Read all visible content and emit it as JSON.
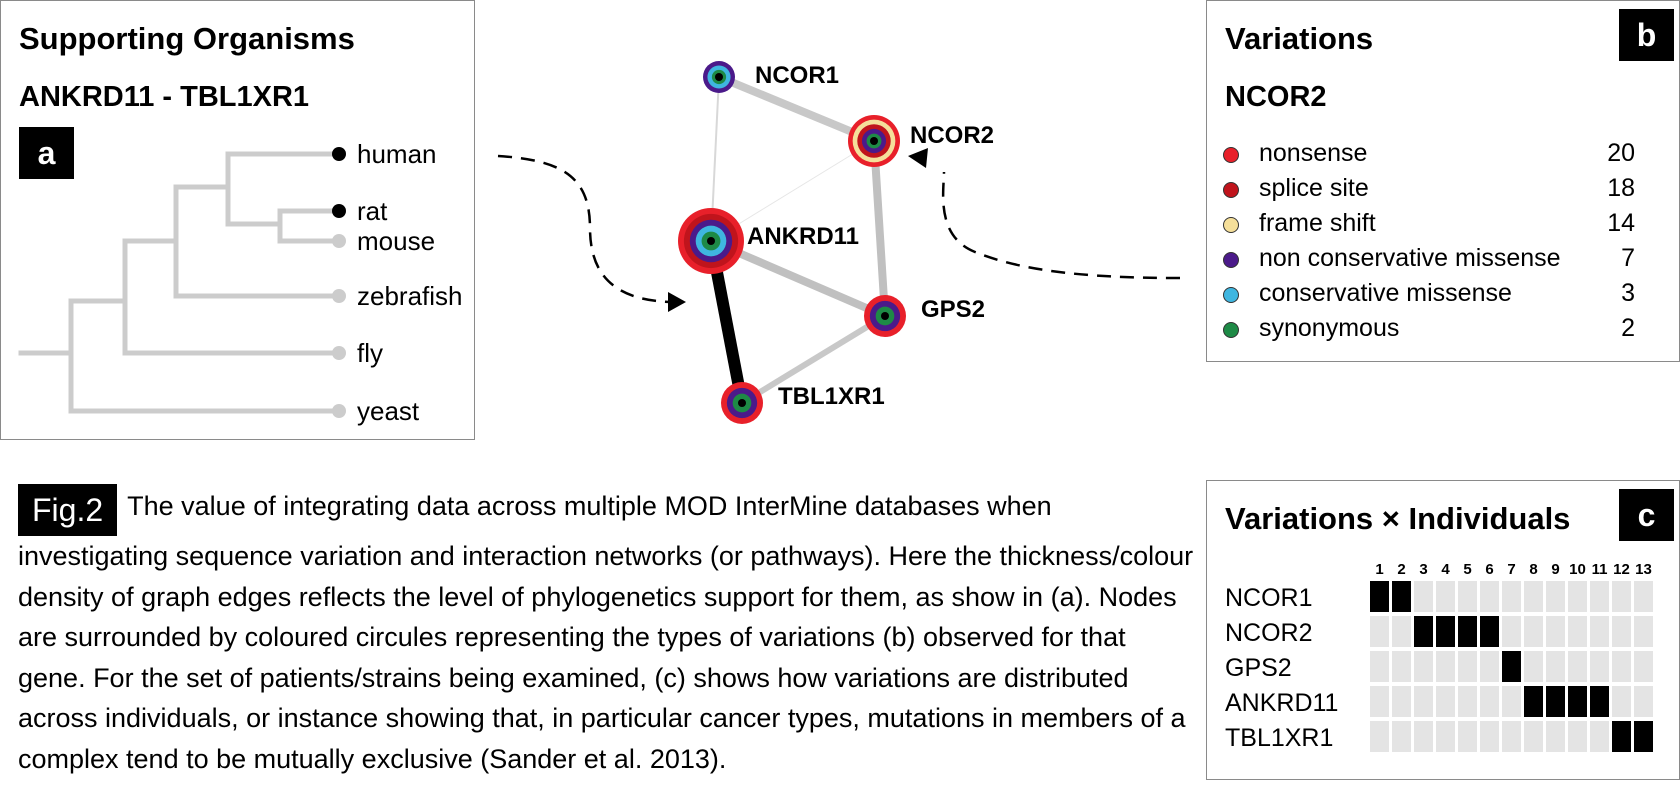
{
  "panel_a": {
    "title": "Supporting Organisms",
    "subtitle": "ANKRD11 - TBL1XR1",
    "badge": "a",
    "organisms": [
      {
        "name": "human",
        "supported": true
      },
      {
        "name": "rat",
        "supported": true
      },
      {
        "name": "mouse",
        "supported": false
      },
      {
        "name": "zebrafish",
        "supported": false
      },
      {
        "name": "fly",
        "supported": false
      },
      {
        "name": "yeast",
        "supported": false
      }
    ]
  },
  "network": {
    "nodes": [
      {
        "id": "NCOR1",
        "label": "NCOR1"
      },
      {
        "id": "NCOR2",
        "label": "NCOR2"
      },
      {
        "id": "ANKRD11",
        "label": "ANKRD11"
      },
      {
        "id": "GPS2",
        "label": "GPS2"
      },
      {
        "id": "TBL1XR1",
        "label": "TBL1XR1"
      }
    ],
    "edges": [
      {
        "from": "NCOR1",
        "to": "NCOR2",
        "support": "strong",
        "color": "#c8c8c8"
      },
      {
        "from": "NCOR1",
        "to": "ANKRD11",
        "support": "weak",
        "color": "#d8d8d8"
      },
      {
        "from": "NCOR2",
        "to": "ANKRD11",
        "support": "very weak",
        "color": "#e6e6e6"
      },
      {
        "from": "NCOR2",
        "to": "GPS2",
        "support": "strong",
        "color": "#c0c0c0"
      },
      {
        "from": "ANKRD11",
        "to": "GPS2",
        "support": "strong",
        "color": "#c0c0c0"
      },
      {
        "from": "ANKRD11",
        "to": "TBL1XR1",
        "support": "strongest",
        "color": "#000000"
      },
      {
        "from": "GPS2",
        "to": "TBL1XR1",
        "support": "medium",
        "color": "#c8c8c8"
      }
    ]
  },
  "panel_b": {
    "title": "Variations",
    "gene": "NCOR2",
    "badge": "b",
    "variations": [
      {
        "label": "nonsense",
        "count": "20",
        "color": "#e8202a"
      },
      {
        "label": "splice site",
        "count": "18",
        "color": "#c0141c"
      },
      {
        "label": "frame shift",
        "count": "14",
        "color": "#f5df9a"
      },
      {
        "label": "non conservative missense",
        "count": "7",
        "color": "#4b1a8a"
      },
      {
        "label": "conservative missense",
        "count": "3",
        "color": "#3fb6e0"
      },
      {
        "label": "synonymous",
        "count": "2",
        "color": "#1e8a46"
      }
    ]
  },
  "panel_c": {
    "title": "Variations × Individuals",
    "badge": "c",
    "individuals": [
      "1",
      "2",
      "3",
      "4",
      "5",
      "6",
      "7",
      "8",
      "9",
      "10",
      "11",
      "12",
      "13"
    ],
    "genes": [
      {
        "name": "NCOR1",
        "cells": [
          1,
          1,
          0,
          0,
          0,
          0,
          0,
          0,
          0,
          0,
          0,
          0,
          0
        ]
      },
      {
        "name": "NCOR2",
        "cells": [
          0,
          0,
          1,
          1,
          1,
          1,
          0,
          0,
          0,
          0,
          0,
          0,
          0
        ]
      },
      {
        "name": "GPS2",
        "cells": [
          0,
          0,
          0,
          0,
          0,
          0,
          1,
          0,
          0,
          0,
          0,
          0,
          0
        ]
      },
      {
        "name": "ANKRD11",
        "cells": [
          0,
          0,
          0,
          0,
          0,
          0,
          0,
          1,
          1,
          1,
          1,
          0,
          0
        ]
      },
      {
        "name": "TBL1XR1",
        "cells": [
          0,
          0,
          0,
          0,
          0,
          0,
          0,
          0,
          0,
          0,
          0,
          1,
          1
        ]
      }
    ]
  },
  "caption": {
    "label": "Fig.2",
    "text": "The value of integrating data across multiple MOD InterMine databases when investigating sequence variation and interaction networks (or pathways). Here the thickness/colour density of graph edges reflects the level of phylogenetics support for them, as show in (a). Nodes are surrounded by coloured circules representing the types of variations (b) observed for that gene. For the set of patients/strains being examined, (c) shows how variations are distributed across individuals, or instance showing that, in particular cancer types, mutations in members of a complex tend to be mutually exclusive (Sander et al. 2013)."
  }
}
